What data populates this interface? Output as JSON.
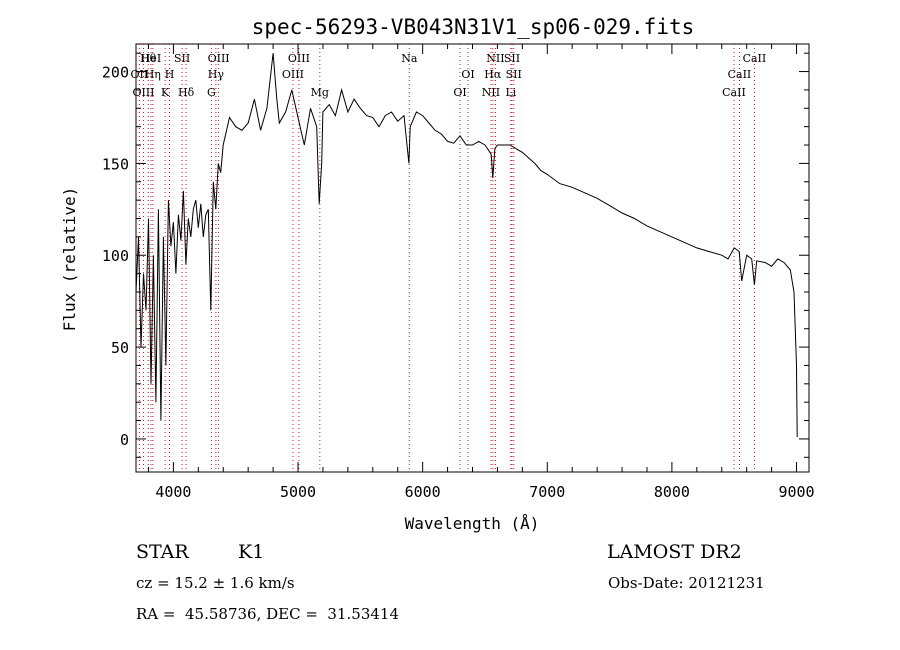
{
  "chart_data": {
    "type": "line",
    "title": "spec-56293-VB043N31V1_sp06-029.fits",
    "xlabel": "Wavelength (Å)",
    "ylabel": "Flux (relative)",
    "xlim": [
      3700,
      9100
    ],
    "ylim": [
      -18,
      215
    ],
    "xticks": [
      4000,
      5000,
      6000,
      7000,
      8000,
      9000
    ],
    "yticks": [
      0,
      50,
      100,
      150,
      200
    ],
    "grid": false,
    "series": [
      {
        "x": [
          3700,
          3720,
          3740,
          3760,
          3780,
          3800,
          3820,
          3840,
          3860,
          3880,
          3900,
          3920,
          3940,
          3960,
          3980,
          4000,
          4020,
          4040,
          4060,
          4080,
          4100,
          4120,
          4140,
          4160,
          4180,
          4200,
          4220,
          4240,
          4260,
          4280,
          4300,
          4320,
          4340,
          4360,
          4380,
          4400,
          4450,
          4500,
          4550,
          4600,
          4650,
          4700,
          4750,
          4800,
          4830,
          4850,
          4900,
          4950,
          5000,
          5050,
          5100,
          5150,
          5170,
          5190,
          5200,
          5250,
          5300,
          5350,
          5400,
          5450,
          5500,
          5550,
          5600,
          5650,
          5700,
          5750,
          5800,
          5850,
          5890,
          5900,
          5950,
          6000,
          6050,
          6100,
          6150,
          6200,
          6250,
          6300,
          6350,
          6400,
          6450,
          6500,
          6550,
          6563,
          6580,
          6600,
          6650,
          6700,
          6750,
          6800,
          6850,
          6900,
          6950,
          7000,
          7100,
          7200,
          7300,
          7400,
          7500,
          7600,
          7700,
          7800,
          7900,
          8000,
          8100,
          8200,
          8300,
          8400,
          8450,
          8500,
          8540,
          8560,
          8600,
          8640,
          8662,
          8680,
          8750,
          8800,
          8850,
          8900,
          8950,
          8980,
          9000,
          9005
        ],
        "y": [
          80,
          110,
          50,
          90,
          70,
          120,
          30,
          100,
          20,
          125,
          10,
          110,
          40,
          130,
          105,
          118,
          90,
          122,
          108,
          135,
          95,
          120,
          110,
          125,
          130,
          115,
          128,
          110,
          122,
          125,
          70,
          140,
          125,
          150,
          145,
          160,
          175,
          170,
          168,
          172,
          185,
          168,
          180,
          210,
          185,
          172,
          178,
          190,
          175,
          160,
          180,
          170,
          128,
          150,
          178,
          182,
          176,
          190,
          178,
          185,
          180,
          176,
          175,
          170,
          176,
          178,
          173,
          176,
          150,
          170,
          178,
          176,
          172,
          168,
          166,
          162,
          161,
          165,
          160,
          160,
          162,
          160,
          155,
          142,
          158,
          160,
          160,
          160,
          158,
          156,
          153,
          150,
          146,
          144,
          139,
          137,
          134,
          131,
          127,
          123,
          120,
          116,
          113,
          110,
          107,
          104,
          102,
          100,
          98,
          104,
          102,
          86,
          100,
          98,
          84,
          97,
          96,
          94,
          98,
          96,
          92,
          80,
          40,
          1
        ]
      }
    ],
    "lines": [
      {
        "name": "Hθ",
        "x": 3798
      },
      {
        "name": "OII",
        "x": 3727
      },
      {
        "name": "OIII",
        "x": 3760
      },
      {
        "name": "HeI",
        "x": 3820
      },
      {
        "name": "Hη",
        "x": 3835
      },
      {
        "name": "K",
        "x": 3934
      },
      {
        "name": "SII",
        "x": 4070
      },
      {
        "name": "H",
        "x": 3969
      },
      {
        "name": "Hδ",
        "x": 4102
      },
      {
        "name": "OIII",
        "x": 4363
      },
      {
        "name": "Hγ",
        "x": 4341
      },
      {
        "name": "G",
        "x": 4305
      },
      {
        "name": "OIII",
        "x": 5007
      },
      {
        "name": "OIII",
        "x": 4959
      },
      {
        "name": "Mg",
        "x": 5175
      },
      {
        "name": "Na",
        "x": 5893
      },
      {
        "name": "OI",
        "x": 6364
      },
      {
        "name": "OI",
        "x": 6300
      },
      {
        "name": "NII",
        "x": 6584
      },
      {
        "name": "Hα",
        "x": 6563
      },
      {
        "name": "NII",
        "x": 6548
      },
      {
        "name": "SII",
        "x": 6717
      },
      {
        "name": "SII",
        "x": 6731
      },
      {
        "name": "Li",
        "x": 6708
      },
      {
        "name": "CaII",
        "x": 8662
      },
      {
        "name": "CaII",
        "x": 8542
      },
      {
        "name": "CaII",
        "x": 8498
      }
    ]
  },
  "info": {
    "class_label": "STAR",
    "subclass_label": "K1",
    "survey": "LAMOST DR2",
    "redshift": "cz = 15.2 ± 1.6 km/s",
    "obs_date": "Obs-Date: 20121231",
    "coords": "RA =  45.58736, DEC =  31.53414"
  }
}
